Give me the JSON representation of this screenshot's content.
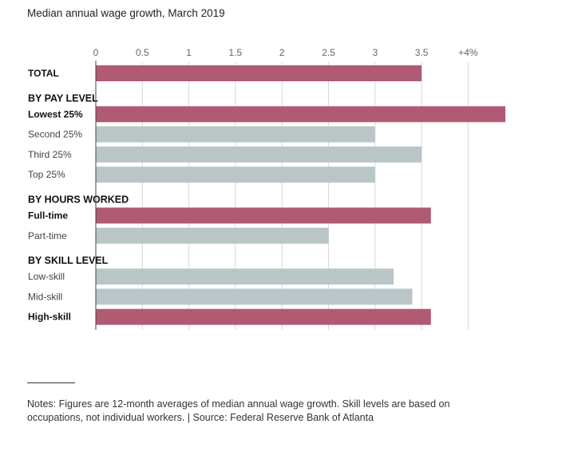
{
  "title": "Median annual wage growth, March 2019",
  "notes": "Notes: Figures are 12-month averages of median annual wage growth. Skill levels are based on occupations, not individual workers. | Source: Federal Reserve Bank of Atlanta",
  "colors": {
    "highlight": "#b05a73",
    "default": "#b9c5c7",
    "axis": "#444444",
    "grid": "#d8d8d8"
  },
  "chart_data": {
    "type": "bar",
    "orientation": "horizontal",
    "title": "Median annual wage growth, March 2019",
    "xlim": [
      0,
      4.4
    ],
    "ticks": [
      {
        "value": 0,
        "label": "0"
      },
      {
        "value": 0.5,
        "label": "0.5"
      },
      {
        "value": 1,
        "label": "1"
      },
      {
        "value": 1.5,
        "label": "1.5"
      },
      {
        "value": 2,
        "label": "2"
      },
      {
        "value": 2.5,
        "label": "2.5"
      },
      {
        "value": 3,
        "label": "3"
      },
      {
        "value": 3.5,
        "label": "3.5"
      },
      {
        "value": 4,
        "label": "+4%"
      }
    ],
    "grid": true,
    "rows": [
      {
        "kind": "bar",
        "label": "TOTAL",
        "value": 3.5,
        "highlight": true,
        "bold": true
      },
      {
        "kind": "section",
        "label": "BY PAY LEVEL"
      },
      {
        "kind": "bar",
        "label": "Lowest 25%",
        "value": 4.4,
        "highlight": true,
        "bold": true
      },
      {
        "kind": "bar",
        "label": "Second 25%",
        "value": 3.0,
        "highlight": false,
        "bold": false
      },
      {
        "kind": "bar",
        "label": "Third 25%",
        "value": 3.5,
        "highlight": false,
        "bold": false
      },
      {
        "kind": "bar",
        "label": "Top 25%",
        "value": 3.0,
        "highlight": false,
        "bold": false
      },
      {
        "kind": "section",
        "label": "BY HOURS WORKED"
      },
      {
        "kind": "bar",
        "label": "Full-time",
        "value": 3.6,
        "highlight": true,
        "bold": true
      },
      {
        "kind": "bar",
        "label": "Part-time",
        "value": 2.5,
        "highlight": false,
        "bold": false
      },
      {
        "kind": "section",
        "label": "BY SKILL LEVEL"
      },
      {
        "kind": "bar",
        "label": "Low-skill",
        "value": 3.2,
        "highlight": false,
        "bold": false
      },
      {
        "kind": "bar",
        "label": "Mid-skill",
        "value": 3.4,
        "highlight": false,
        "bold": false
      },
      {
        "kind": "bar",
        "label": "High-skill",
        "value": 3.6,
        "highlight": true,
        "bold": true
      }
    ]
  }
}
